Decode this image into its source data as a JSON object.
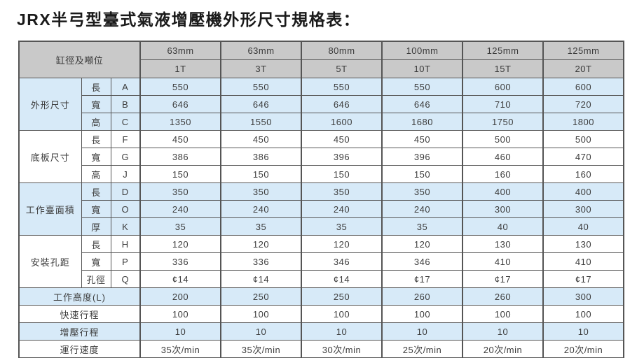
{
  "title": "JRX半弓型臺式氣液增壓機外形尺寸規格表：",
  "table": {
    "corner_label": "缸徑及噸位",
    "columns": [
      {
        "diameter": "63mm",
        "tonnage": "1T"
      },
      {
        "diameter": "63mm",
        "tonnage": "3T"
      },
      {
        "diameter": "80mm",
        "tonnage": "5T"
      },
      {
        "diameter": "100mm",
        "tonnage": "10T"
      },
      {
        "diameter": "125mm",
        "tonnage": "15T"
      },
      {
        "diameter": "125mm",
        "tonnage": "20T"
      }
    ],
    "sections": [
      {
        "name": "外形尺寸",
        "rows": [
          {
            "dim": "長",
            "code": "A",
            "values": [
              "550",
              "550",
              "550",
              "550",
              "600",
              "600"
            ]
          },
          {
            "dim": "寬",
            "code": "B",
            "values": [
              "646",
              "646",
              "646",
              "646",
              "710",
              "720"
            ]
          },
          {
            "dim": "高",
            "code": "C",
            "values": [
              "1350",
              "1550",
              "1600",
              "1680",
              "1750",
              "1800"
            ]
          }
        ]
      },
      {
        "name": "底板尺寸",
        "rows": [
          {
            "dim": "長",
            "code": "F",
            "values": [
              "450",
              "450",
              "450",
              "450",
              "500",
              "500"
            ]
          },
          {
            "dim": "寬",
            "code": "G",
            "values": [
              "386",
              "386",
              "396",
              "396",
              "460",
              "470"
            ]
          },
          {
            "dim": "高",
            "code": "J",
            "values": [
              "150",
              "150",
              "150",
              "150",
              "160",
              "160"
            ]
          }
        ]
      },
      {
        "name": "工作臺面積",
        "rows": [
          {
            "dim": "長",
            "code": "D",
            "values": [
              "350",
              "350",
              "350",
              "350",
              "400",
              "400"
            ]
          },
          {
            "dim": "寬",
            "code": "O",
            "values": [
              "240",
              "240",
              "240",
              "240",
              "300",
              "300"
            ]
          },
          {
            "dim": "厚",
            "code": "K",
            "values": [
              "35",
              "35",
              "35",
              "35",
              "40",
              "40"
            ]
          }
        ]
      },
      {
        "name": "安裝孔距",
        "rows": [
          {
            "dim": "長",
            "code": "H",
            "values": [
              "120",
              "120",
              "120",
              "120",
              "130",
              "130"
            ]
          },
          {
            "dim": "寬",
            "code": "P",
            "values": [
              "336",
              "336",
              "346",
              "346",
              "410",
              "410"
            ]
          },
          {
            "dim": "孔徑",
            "code": "Q",
            "values": [
              "¢14",
              "¢14",
              "¢14",
              "¢17",
              "¢17",
              "¢17"
            ]
          }
        ]
      }
    ],
    "footer_rows": [
      {
        "label": "工作高度(L)",
        "values": [
          "200",
          "250",
          "250",
          "260",
          "260",
          "300"
        ]
      },
      {
        "label": "快速行程",
        "values": [
          "100",
          "100",
          "100",
          "100",
          "100",
          "100"
        ]
      },
      {
        "label": "增壓行程",
        "values": [
          "10",
          "10",
          "10",
          "10",
          "10",
          "10"
        ]
      },
      {
        "label": "運行速度",
        "values": [
          "35次/min",
          "35次/min",
          "30次/min",
          "25次/min",
          "20次/min",
          "20次/min"
        ]
      }
    ]
  },
  "colors": {
    "header_bg": "#c9c9c9",
    "row_blue_bg": "#d7eaf8",
    "row_white_bg": "#ffffff",
    "border": "#555555",
    "text": "#3d3d3d",
    "title_text": "#1a1a1a"
  }
}
